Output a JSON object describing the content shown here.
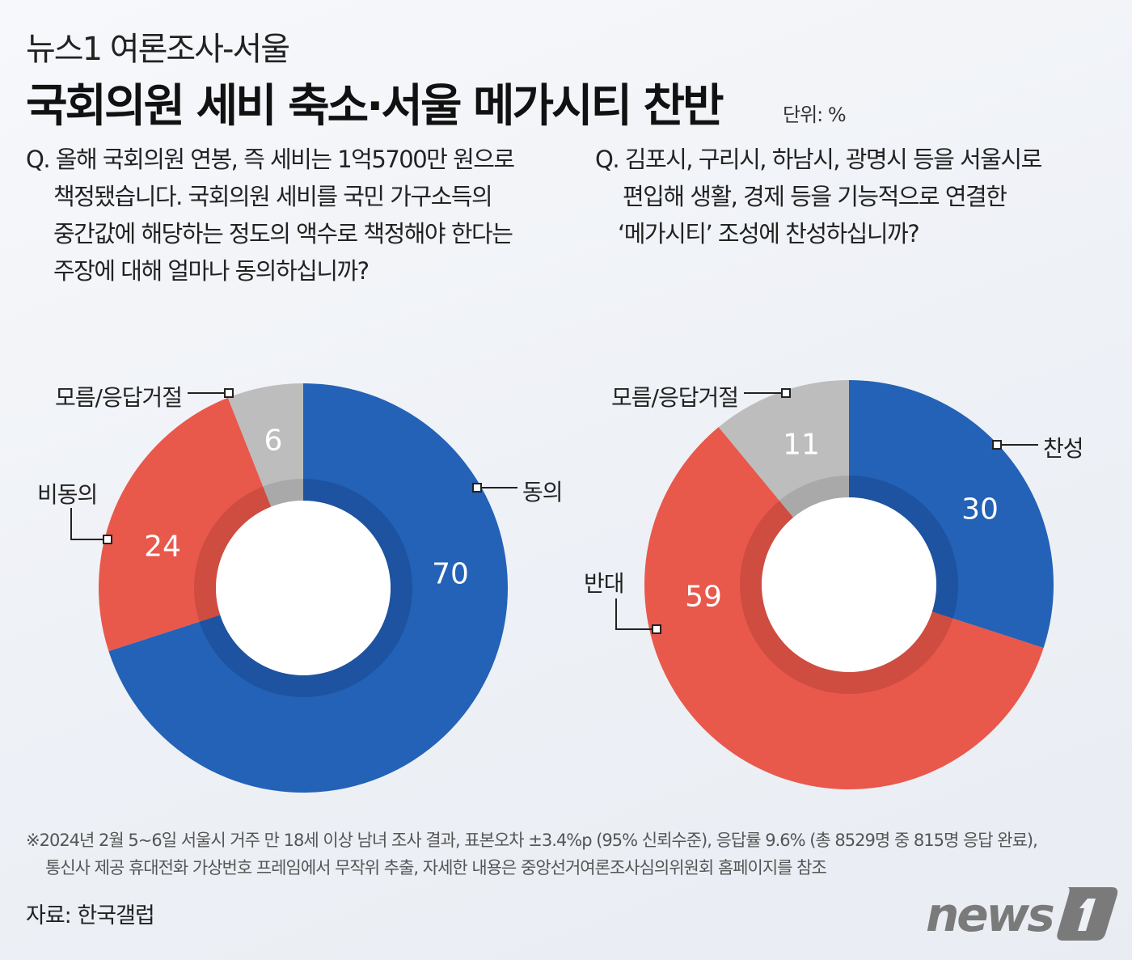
{
  "header": {
    "kicker": "뉴스1 여론조사-서울",
    "title": "국회의원 세비 축소·서울 메가시티 찬반",
    "unit": "단위: %"
  },
  "questions": [
    {
      "lines": [
        "Q. 올해 국회의원 연봉, 즉 세비는 1억5700만 원으로",
        "책정됐습니다. 국회의원 세비를 국민 가구소득의",
        "중간값에 해당하는 정도의 액수로 책정해야 한다는",
        "주장에 대해 얼마나 동의하십니까?"
      ]
    },
    {
      "lines": [
        "Q. 김포시, 구리시, 하남시, 광명시 등을 서울시로",
        "편입해 생활, 경제 등을 기능적으로 연결한",
        "‘메가시티’ 조성에 찬성하십니까?"
      ]
    }
  ],
  "colors": {
    "blue": "#2362b6",
    "red": "#e8584b",
    "gray": "#bdbdbd",
    "blue_inner": "#1d53a0",
    "red_inner": "#cf4c41",
    "gray_inner": "#a9a9a9"
  },
  "chart_data": [
    {
      "type": "pie",
      "donut": true,
      "start": "top",
      "direction": "clockwise",
      "categories": [
        "동의",
        "비동의",
        "모름/응답거절"
      ],
      "values": [
        70,
        24,
        6
      ],
      "colors": [
        "blue",
        "red",
        "gray"
      ]
    },
    {
      "type": "pie",
      "donut": true,
      "start": "top",
      "direction": "clockwise",
      "categories": [
        "찬성",
        "반대",
        "모름/응답거절"
      ],
      "values": [
        30,
        59,
        11
      ],
      "colors": [
        "blue",
        "red",
        "gray"
      ]
    }
  ],
  "footnote": [
    "※2024년 2월 5~6일 서울시 거주 만 18세 이상 남녀 조사 결과, 표본오차 ±3.4%p (95% 신뢰수준), 응답률 9.6% (총  8529명 중 815명 응답 완료),",
    "통신사 제공 휴대전화 가상번호 프레임에서 무작위 추출, 자세한 내용은 중앙선거여론조사심의위원회 홈페이지를 참조"
  ],
  "source": "자료: 한국갤럽",
  "logo": "news1"
}
